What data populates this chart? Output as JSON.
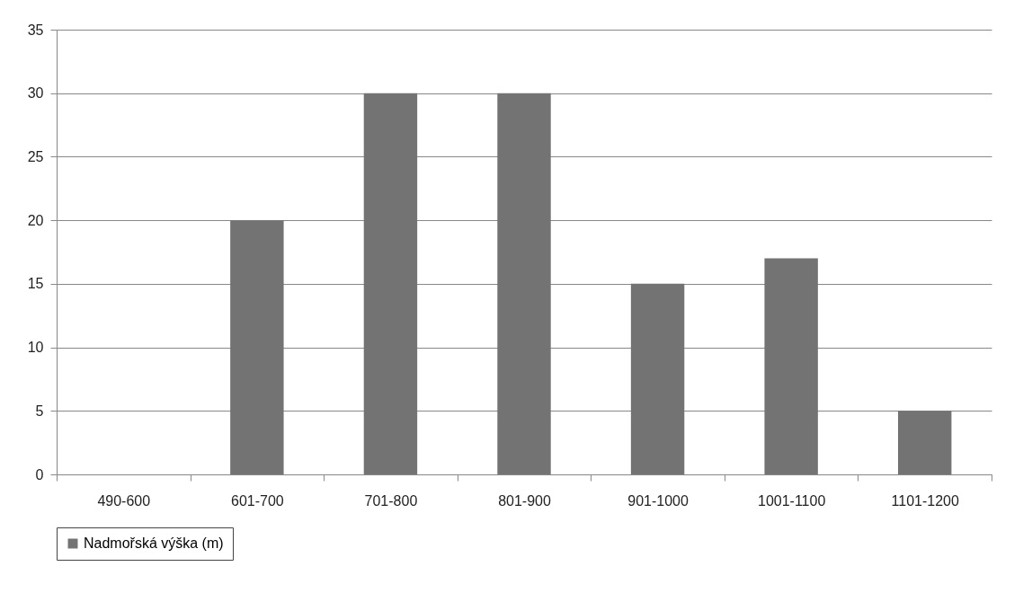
{
  "chart_data": {
    "type": "bar",
    "categories": [
      "490-600",
      "601-700",
      "701-800",
      "801-900",
      "901-1000",
      "1001-1100",
      "1101-1200"
    ],
    "series": [
      {
        "name": "Nadmořská výška (m)",
        "color": "#737373",
        "values": [
          0,
          20,
          30,
          30,
          15,
          17,
          5
        ]
      }
    ],
    "ylim": [
      0,
      35
    ],
    "yticks": [
      0,
      5,
      10,
      15,
      20,
      25,
      30,
      35
    ],
    "grid": "y",
    "legend": "bottom"
  }
}
